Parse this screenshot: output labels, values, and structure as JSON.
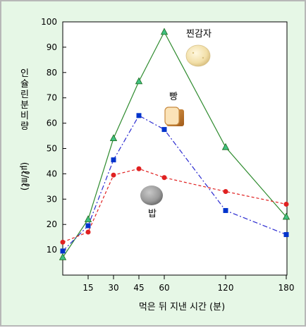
{
  "chart_data": {
    "type": "line",
    "xlabel": "먹은 뒤 지낸 시간 (분)",
    "ylabel": "인슐린 분비량",
    "yunit": "(㎕/㎖)",
    "ylim": [
      0,
      100
    ],
    "yticks": [
      10,
      20,
      30,
      40,
      50,
      60,
      70,
      80,
      90,
      100
    ],
    "x_tick_labels": [
      "15",
      "30",
      "45",
      "60",
      "120",
      "180"
    ],
    "x_tick_values": [
      15,
      30,
      45,
      60,
      120,
      180
    ],
    "grid": false,
    "series": [
      {
        "name": "찐감자",
        "color": "#2e8b2e",
        "marker": "triangle",
        "marker_color": "#40c080",
        "dash": "solid",
        "x": [
          0,
          15,
          30,
          45,
          60,
          120,
          180
        ],
        "y": [
          7,
          22,
          54,
          76.5,
          96,
          50.5,
          23
        ]
      },
      {
        "name": "빵",
        "color": "#2a2ad0",
        "marker": "square",
        "marker_color": "#0033cc",
        "dash": "dashdot",
        "x": [
          0,
          15,
          30,
          45,
          60,
          120,
          180
        ],
        "y": [
          9.5,
          19.5,
          45.5,
          63,
          57.5,
          25.5,
          16
        ]
      },
      {
        "name": "밥",
        "color": "#e02020",
        "marker": "circle",
        "marker_color": "#e02020",
        "dash": "dashed",
        "x": [
          0,
          15,
          30,
          45,
          60,
          120,
          180
        ],
        "y": [
          13,
          17,
          39.5,
          42,
          38.5,
          33,
          28
        ]
      }
    ]
  }
}
